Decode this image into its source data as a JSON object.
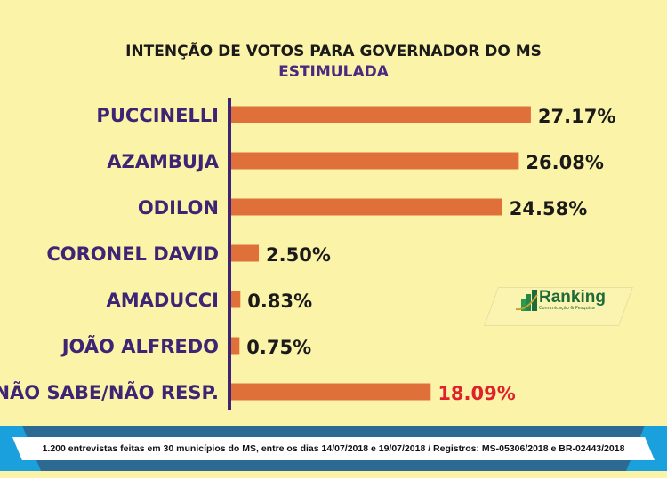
{
  "header": {
    "title": "INTENÇÃO DE VOTOS PARA GOVERNADOR DO MS",
    "subtitle": "ESTIMULADA"
  },
  "chart_data": {
    "type": "bar",
    "orientation": "horizontal",
    "title": "INTENÇÃO DE VOTOS PARA GOVERNADOR DO MS",
    "subtitle": "ESTIMULADA",
    "categories": [
      "PUCCINELLI",
      "AZAMBUJA",
      "ODILON",
      "CORONEL DAVID",
      "AMADUCCI",
      "JOÃO ALFREDO",
      "NÃO SABE/NÃO RESP."
    ],
    "values": [
      27.17,
      26.08,
      24.58,
      2.5,
      0.83,
      0.75,
      18.09
    ],
    "labels": [
      "27.17%",
      "26.08%",
      "24.58%",
      "2.50%",
      "0.83%",
      "0.75%",
      "18.09%"
    ],
    "xlim": [
      0,
      28
    ],
    "grid": false,
    "colors": {
      "bar": "#e0703a",
      "category_text": "#3d2474",
      "value_text": "#1a1a1a",
      "highlight_value_text": "#e0202a",
      "axis": "#3d2474",
      "background": "#fbf3a8"
    }
  },
  "logo": {
    "name": "Ranking",
    "tagline": "Comunicação & Pesquisa"
  },
  "footer": {
    "text": "1.200 entrevistas feitas em 30 municípios do MS, entre os dias 14/07/2018 e 19/07/2018 / Registros: MS-05306/2018 e BR-02443/2018"
  }
}
